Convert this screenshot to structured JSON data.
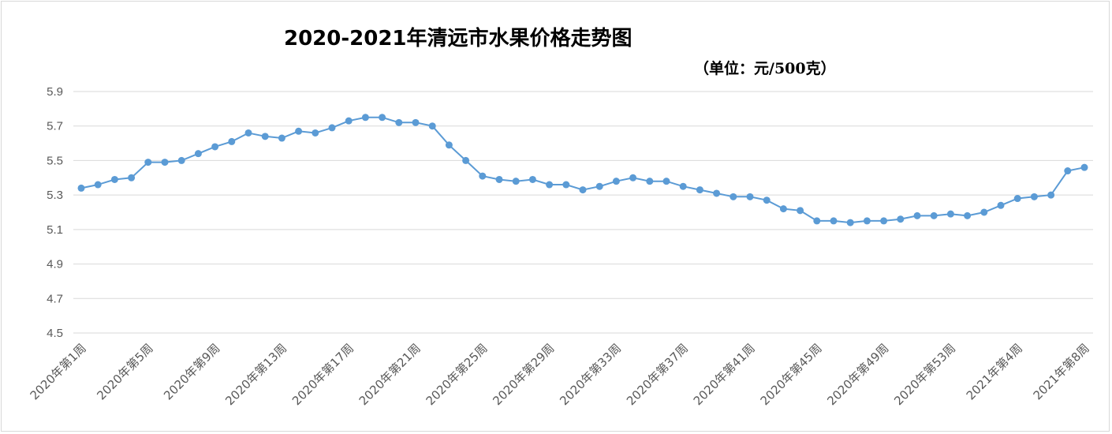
{
  "chart_data": {
    "type": "line",
    "title": "2020-2021年清远市水果价格走势图",
    "subtitle": "（单位：元/500克）",
    "xlabel": "",
    "ylabel": "",
    "ylim": [
      4.5,
      5.9
    ],
    "yticks": [
      "5.9",
      "5.7",
      "5.5",
      "5.3",
      "5.1",
      "4.9",
      "4.7",
      "4.5"
    ],
    "grid": true,
    "legend": "none",
    "x_tick_labels": [
      "2020年第1周",
      "2020年第5周",
      "2020年第9周",
      "2020年第13周",
      "2020年第17周",
      "2020年第21周",
      "2020年第25周",
      "2020年第29周",
      "2020年第33周",
      "2020年第37周",
      "2020年第41周",
      "2020年第45周",
      "2020年第49周",
      "2020年第53周",
      "2021年第4周",
      "2021年第8周"
    ],
    "series": [
      {
        "values": [
          5.34,
          5.36,
          5.39,
          5.4,
          5.49,
          5.49,
          5.5,
          5.54,
          5.58,
          5.61,
          5.66,
          5.64,
          5.63,
          5.67,
          5.66,
          5.69,
          5.73,
          5.75,
          5.75,
          5.72,
          5.72,
          5.7,
          5.59,
          5.5,
          5.41,
          5.39,
          5.38,
          5.39,
          5.36,
          5.36,
          5.33,
          5.35,
          5.38,
          5.4,
          5.38,
          5.38,
          5.35,
          5.33,
          5.31,
          5.29,
          5.29,
          5.27,
          5.22,
          5.21,
          5.15,
          5.15,
          5.14,
          5.15,
          5.15,
          5.16,
          5.18,
          5.18,
          5.19,
          5.18,
          5.2,
          5.24,
          5.28,
          5.29,
          5.3,
          5.44,
          5.46
        ]
      }
    ],
    "line_color": "#5b9bd5",
    "grid_color": "#d9d9d9"
  }
}
